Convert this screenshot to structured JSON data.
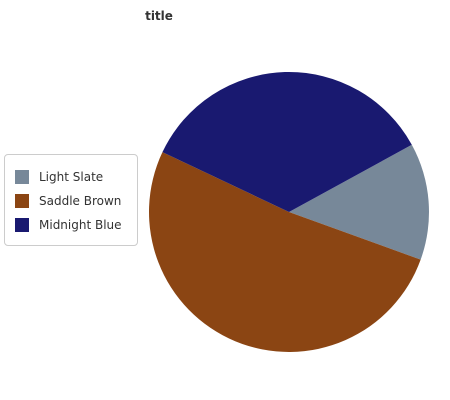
{
  "title": "title",
  "chart_data": {
    "type": "pie",
    "title": "title",
    "legend_position": "left",
    "labels": [
      "Light Slate",
      "Saddle Brown",
      "Midnight Blue"
    ],
    "values": [
      13.5,
      51.5,
      35.0
    ],
    "colors": [
      "#778899",
      "#8b4513",
      "#191970"
    ]
  }
}
